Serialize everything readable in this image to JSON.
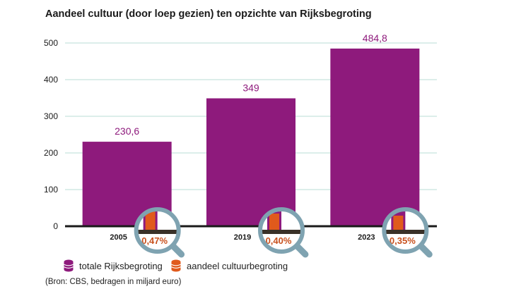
{
  "chart_data": {
    "type": "bar",
    "title": "Aandeel cultuur (door loep gezien) ten opzichte van Rijksbegroting",
    "categories": [
      "2005",
      "2019",
      "2023"
    ],
    "series": [
      {
        "name": "totale Rijksbegroting",
        "values": [
          230.6,
          349,
          484.8
        ],
        "color": "#8e1a7c"
      },
      {
        "name": "aandeel cultuurbegroting",
        "values": [
          0.47,
          0.4,
          0.35
        ],
        "color": "#e05a1c"
      }
    ],
    "value_labels": [
      "230,6",
      "349",
      "484,8"
    ],
    "share_labels": [
      "0,47%",
      "0,40%",
      "0,35%"
    ],
    "y_ticks": [
      0,
      100,
      200,
      300,
      400,
      500
    ],
    "ylim": [
      0,
      500
    ],
    "xlabel": "",
    "ylabel": "",
    "grid": true,
    "legend_position": "bottom-left",
    "source": "(Bron: CBS, bedragen in miljard euro)"
  },
  "colors": {
    "bar": "#8e1a7c",
    "share": "#e05a1c",
    "share_text": "#c8501c",
    "grid": "#b9ddd6",
    "axis": "#1a1a1a",
    "lens": "#7fa3b1"
  }
}
